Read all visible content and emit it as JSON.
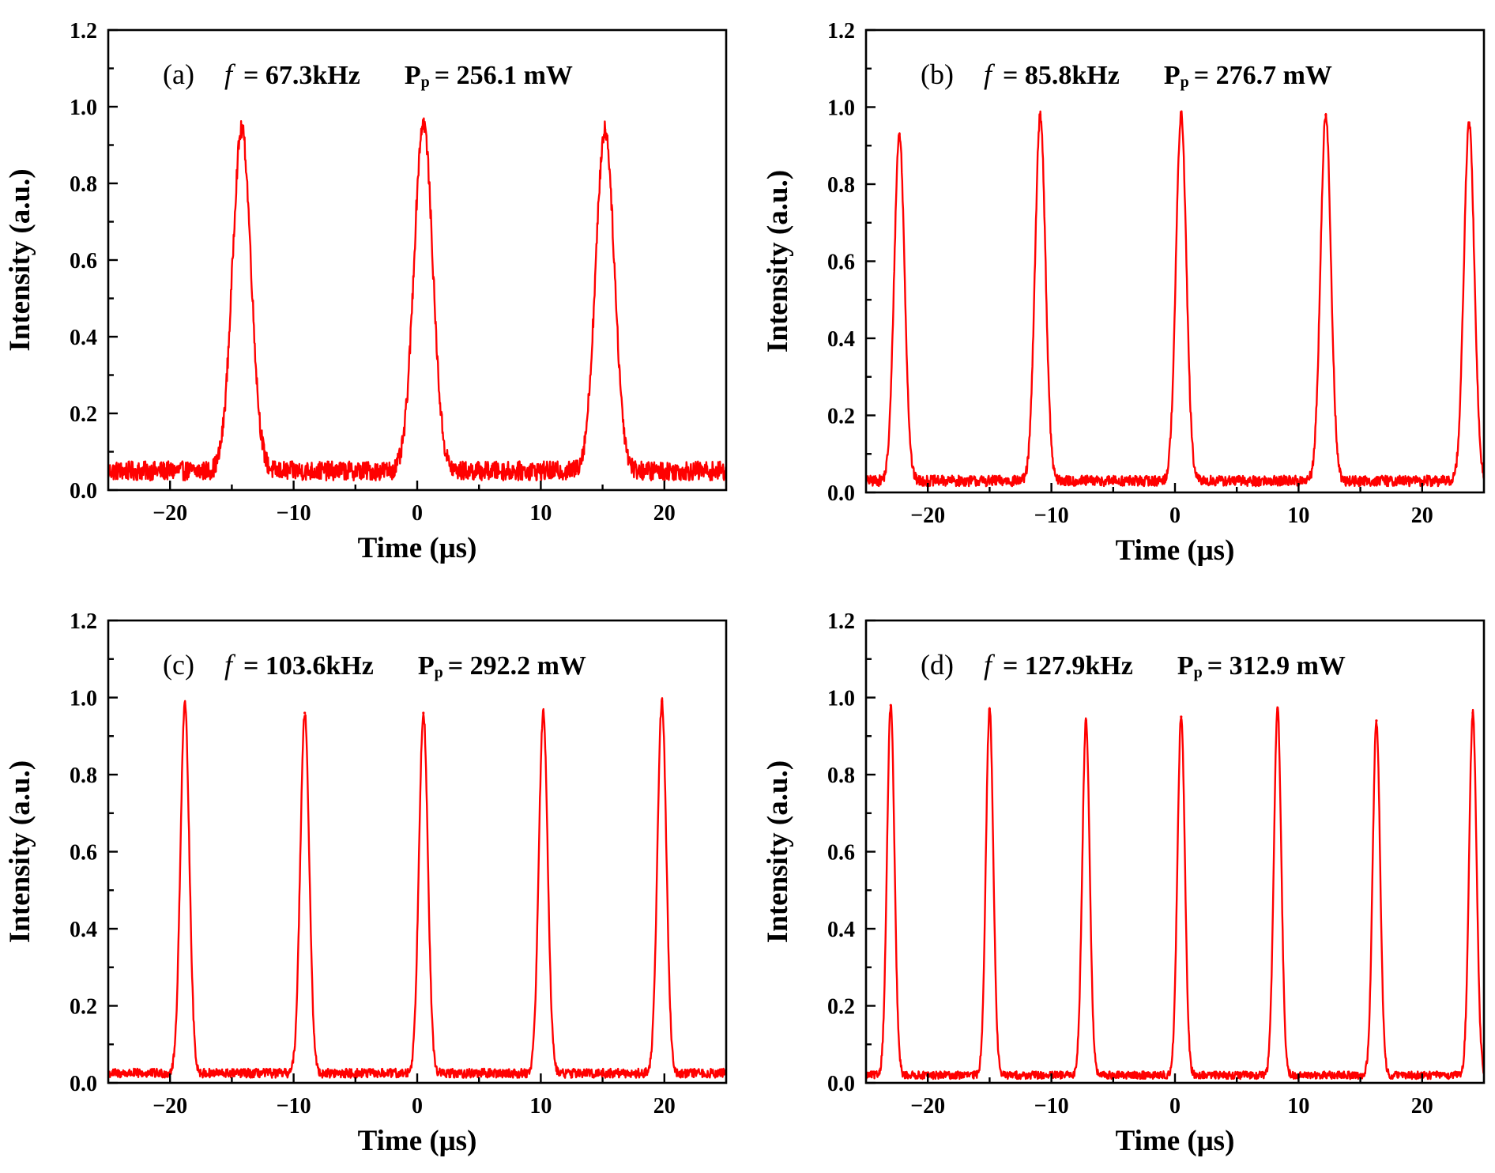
{
  "figure": {
    "trace_color": "#ff0000"
  },
  "chart_data": [
    {
      "id": "a",
      "type": "line",
      "panel_label": "(a)",
      "f_symbol": "f",
      "f_text": "= 67.3kHz",
      "p_main": "P",
      "p_sub": "p",
      "p_text": "= 256.1 mW",
      "xlabel": "Time (μs)",
      "ylabel": "Intensity (a.u.)",
      "xlim": [
        -25,
        25
      ],
      "ylim": [
        0,
        1.2
      ],
      "x_ticks": [
        -20,
        -10,
        0,
        10,
        20
      ],
      "x_tick_labels": [
        "−20",
        "−10",
        "0",
        "10",
        "20"
      ],
      "y_ticks": [
        0,
        0.2,
        0.4,
        0.6,
        0.8,
        1.0,
        1.2
      ],
      "y_tick_labels": [
        "0.0",
        "0.2",
        "0.4",
        "0.6",
        "0.8",
        "1.0",
        "1.2"
      ],
      "baseline": 0.05,
      "noise": 0.025,
      "pulse_width": 0.75,
      "pulses": [
        {
          "t": -14.2,
          "peak": 0.94
        },
        {
          "t": 0.5,
          "peak": 0.96
        },
        {
          "t": 15.2,
          "peak": 0.94
        }
      ]
    },
    {
      "id": "b",
      "type": "line",
      "panel_label": "(b)",
      "f_symbol": "f",
      "f_text": "= 85.8kHz",
      "p_main": "P",
      "p_sub": "p",
      "p_text": "= 276.7 mW",
      "xlabel": "Time (μs)",
      "ylabel": "Intensity (a.u.)",
      "xlim": [
        -25,
        25
      ],
      "ylim": [
        0,
        1.2
      ],
      "x_ticks": [
        -20,
        -10,
        0,
        10,
        20
      ],
      "x_tick_labels": [
        "−20",
        "−10",
        "0",
        "10",
        "20"
      ],
      "y_ticks": [
        0,
        0.2,
        0.4,
        0.6,
        0.8,
        1.0,
        1.2
      ],
      "y_tick_labels": [
        "0.0",
        "0.2",
        "0.4",
        "0.6",
        "0.8",
        "1.0",
        "1.2"
      ],
      "baseline": 0.03,
      "noise": 0.014,
      "pulse_width": 0.42,
      "pulses": [
        {
          "t": -22.3,
          "peak": 0.93
        },
        {
          "t": -10.9,
          "peak": 0.98
        },
        {
          "t": 0.5,
          "peak": 0.98
        },
        {
          "t": 12.2,
          "peak": 0.98
        },
        {
          "t": 23.8,
          "peak": 0.96
        }
      ]
    },
    {
      "id": "c",
      "type": "line",
      "panel_label": "(c)",
      "f_symbol": "f",
      "f_text": "= 103.6kHz",
      "p_main": "P",
      "p_sub": "p",
      "p_text": "= 292.2 mW",
      "xlabel": "Time (μs)",
      "ylabel": "Intensity (a.u.)",
      "xlim": [
        -25,
        25
      ],
      "ylim": [
        0,
        1.2
      ],
      "x_ticks": [
        -20,
        -10,
        0,
        10,
        20
      ],
      "x_tick_labels": [
        "−20",
        "−10",
        "0",
        "10",
        "20"
      ],
      "y_ticks": [
        0,
        0.2,
        0.4,
        0.6,
        0.8,
        1.0,
        1.2
      ],
      "y_tick_labels": [
        "0.0",
        "0.2",
        "0.4",
        "0.6",
        "0.8",
        "1.0",
        "1.2"
      ],
      "baseline": 0.025,
      "noise": 0.012,
      "pulse_width": 0.36,
      "pulses": [
        {
          "t": -18.8,
          "peak": 0.98
        },
        {
          "t": -9.1,
          "peak": 0.96
        },
        {
          "t": 0.5,
          "peak": 0.96
        },
        {
          "t": 10.2,
          "peak": 0.96
        },
        {
          "t": 19.8,
          "peak": 0.99
        }
      ]
    },
    {
      "id": "d",
      "type": "line",
      "panel_label": "(d)",
      "f_symbol": "f",
      "f_text": "= 127.9kHz",
      "p_main": "P",
      "p_sub": "p",
      "p_text": "= 312.9 mW",
      "xlabel": "Time (μs)",
      "ylabel": "Intensity (a.u.)",
      "xlim": [
        -25,
        25
      ],
      "ylim": [
        0,
        1.2
      ],
      "x_ticks": [
        -20,
        -10,
        0,
        10,
        20
      ],
      "x_tick_labels": [
        "−20",
        "−10",
        "0",
        "10",
        "20"
      ],
      "y_ticks": [
        0,
        0.2,
        0.4,
        0.6,
        0.8,
        1.0,
        1.2
      ],
      "y_tick_labels": [
        "0.0",
        "0.2",
        "0.4",
        "0.6",
        "0.8",
        "1.0",
        "1.2"
      ],
      "baseline": 0.02,
      "noise": 0.01,
      "pulse_width": 0.3,
      "pulses": [
        {
          "t": -23.0,
          "peak": 0.98
        },
        {
          "t": -15.0,
          "peak": 0.97
        },
        {
          "t": -7.2,
          "peak": 0.94
        },
        {
          "t": 0.5,
          "peak": 0.95
        },
        {
          "t": 8.3,
          "peak": 0.97
        },
        {
          "t": 16.3,
          "peak": 0.94
        },
        {
          "t": 24.1,
          "peak": 0.96
        }
      ]
    }
  ]
}
